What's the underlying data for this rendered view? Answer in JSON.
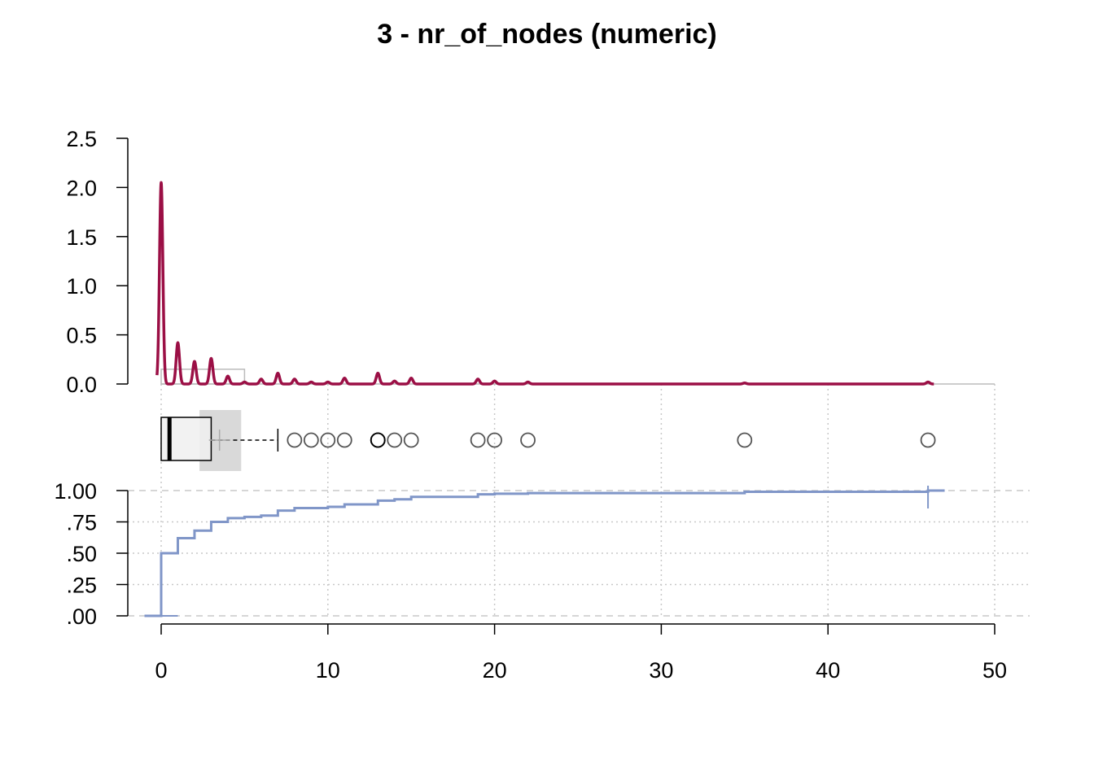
{
  "chart_data": {
    "title": "3 - nr_of_nodes (numeric)",
    "type": "composite",
    "x_axis": {
      "range": [
        0,
        50
      ],
      "ticks": [
        0,
        10,
        20,
        30,
        40,
        50
      ],
      "tick_labels": [
        "0",
        "10",
        "20",
        "30",
        "40",
        "50"
      ]
    },
    "panels": [
      {
        "type": "line",
        "kind": "density",
        "y_range": [
          0,
          2.5
        ],
        "y_ticks": [
          0.0,
          0.5,
          1.0,
          1.5,
          2.0,
          2.5
        ],
        "y_tick_labels": [
          "0.0",
          "0.5",
          "1.0",
          "1.5",
          "2.0",
          "2.5"
        ],
        "color": "#9B0F45",
        "peaks": [
          {
            "x": 0,
            "y": 2.05
          },
          {
            "x": 1,
            "y": 0.42
          },
          {
            "x": 2,
            "y": 0.23
          },
          {
            "x": 3,
            "y": 0.26
          },
          {
            "x": 4,
            "y": 0.08
          },
          {
            "x": 5,
            "y": 0.02
          },
          {
            "x": 6,
            "y": 0.05
          },
          {
            "x": 7,
            "y": 0.11
          },
          {
            "x": 8,
            "y": 0.05
          },
          {
            "x": 9,
            "y": 0.02
          },
          {
            "x": 10,
            "y": 0.02
          },
          {
            "x": 11,
            "y": 0.06
          },
          {
            "x": 13,
            "y": 0.11
          },
          {
            "x": 14,
            "y": 0.03
          },
          {
            "x": 15,
            "y": 0.06
          },
          {
            "x": 19,
            "y": 0.05
          },
          {
            "x": 20,
            "y": 0.03
          },
          {
            "x": 22,
            "y": 0.02
          },
          {
            "x": 35,
            "y": 0.01
          },
          {
            "x": 46,
            "y": 0.02
          }
        ],
        "histogram_bins": [
          {
            "x0": 0,
            "x1": 5,
            "y": 0.15
          },
          {
            "x0": 5,
            "x1": 50,
            "y": 0.0
          }
        ],
        "histogram_color": "#BBBBBB"
      },
      {
        "type": "boxplot",
        "q1": 0,
        "median": 0.5,
        "q3": 3,
        "whisker_low": 0,
        "whisker_high": 7,
        "mean": 3.5,
        "mean_ci": [
          2.3,
          4.8
        ],
        "outliers": [
          8,
          9,
          10,
          11,
          13,
          13,
          14,
          15,
          19,
          20,
          22,
          35,
          46
        ],
        "box_fill": "#F0F0F0",
        "ci_fill": "#D9D9D9",
        "outlier_color": "#555555"
      },
      {
        "type": "line",
        "kind": "ecdf",
        "y_range": [
          0,
          1
        ],
        "y_ticks": [
          0,
          0.25,
          0.5,
          0.75,
          1.0
        ],
        "y_tick_labels": [
          ".00",
          ".25",
          ".50",
          ".75",
          "1.00"
        ],
        "color": "#8096C8",
        "steps": [
          {
            "x": 0,
            "y": 0.5
          },
          {
            "x": 1,
            "y": 0.62
          },
          {
            "x": 2,
            "y": 0.68
          },
          {
            "x": 3,
            "y": 0.75
          },
          {
            "x": 4,
            "y": 0.78
          },
          {
            "x": 5,
            "y": 0.79
          },
          {
            "x": 6,
            "y": 0.8
          },
          {
            "x": 7,
            "y": 0.84
          },
          {
            "x": 8,
            "y": 0.86
          },
          {
            "x": 10,
            "y": 0.87
          },
          {
            "x": 11,
            "y": 0.89
          },
          {
            "x": 13,
            "y": 0.92
          },
          {
            "x": 14,
            "y": 0.93
          },
          {
            "x": 15,
            "y": 0.95
          },
          {
            "x": 19,
            "y": 0.97
          },
          {
            "x": 20,
            "y": 0.975
          },
          {
            "x": 22,
            "y": 0.98
          },
          {
            "x": 35,
            "y": 0.99
          },
          {
            "x": 46,
            "y": 1.0
          }
        ]
      }
    ],
    "grid": true
  }
}
